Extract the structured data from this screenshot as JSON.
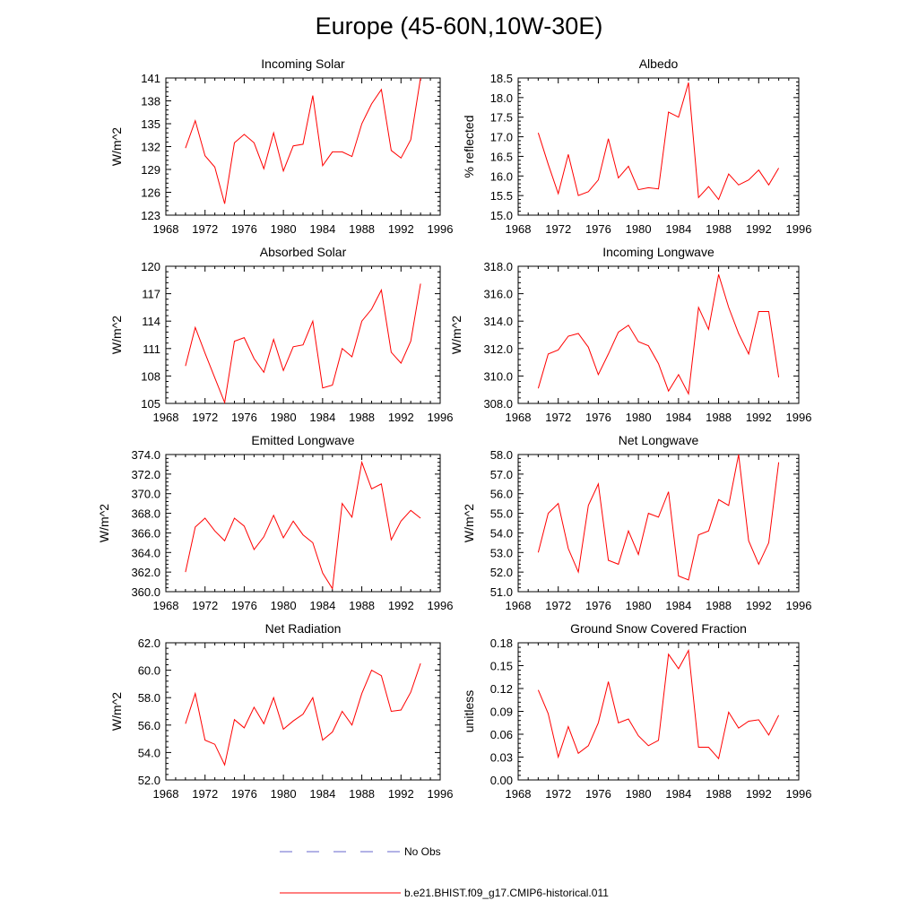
{
  "title": "Europe (45-60N,10W-30E)",
  "legend": [
    {
      "label": "No Obs",
      "color": "#6666cc",
      "dash": true
    },
    {
      "label": "b.e21.BHIST.f09_g17.CMIP6-historical.011",
      "color": "#ff0000",
      "dash": false
    }
  ],
  "chart_data": [
    {
      "type": "line",
      "title": "Incoming Solar",
      "ylabel": "W/m^2",
      "xlim": [
        1968,
        1996
      ],
      "ylim": [
        123,
        141
      ],
      "xticks": [
        1968,
        1972,
        1976,
        1980,
        1984,
        1988,
        1992,
        1996
      ],
      "yticks": [
        "123",
        "126",
        "129",
        "132",
        "135",
        "138",
        "141"
      ],
      "x": [
        1970,
        1971,
        1972,
        1973,
        1974,
        1975,
        1976,
        1977,
        1978,
        1979,
        1980,
        1981,
        1982,
        1983,
        1984,
        1985,
        1986,
        1987,
        1988,
        1989,
        1990,
        1991,
        1992,
        1993,
        1994
      ],
      "series": [
        {
          "name": "b.e21.BHIST.f09_g17.CMIP6-historical.011",
          "values": [
            131.8,
            135.4,
            130.8,
            129.3,
            124.5,
            132.5,
            133.6,
            132.5,
            129.1,
            133.8,
            128.8,
            132.1,
            132.3,
            138.7,
            129.5,
            131.3,
            131.3,
            130.7,
            135,
            137.6,
            139.5,
            131.5,
            130.5,
            132.9,
            141
          ]
        }
      ]
    },
    {
      "type": "line",
      "title": "Albedo",
      "ylabel": "% reflected",
      "xlim": [
        1968,
        1996
      ],
      "ylim": [
        15.0,
        18.5
      ],
      "xticks": [
        1968,
        1972,
        1976,
        1980,
        1984,
        1988,
        1992,
        1996
      ],
      "yticks": [
        "15.0",
        "15.5",
        "16.0",
        "16.5",
        "17.0",
        "17.5",
        "18.0",
        "18.5"
      ],
      "x": [
        1970,
        1971,
        1972,
        1973,
        1974,
        1975,
        1976,
        1977,
        1978,
        1979,
        1980,
        1981,
        1982,
        1983,
        1984,
        1985,
        1986,
        1987,
        1988,
        1989,
        1990,
        1991,
        1992,
        1993,
        1994
      ],
      "series": [
        {
          "name": "b.e21.BHIST.f09_g17.CMIP6-historical.011",
          "values": [
            17.1,
            16.3,
            15.55,
            16.55,
            15.5,
            15.6,
            15.9,
            16.95,
            15.95,
            16.25,
            15.65,
            15.7,
            15.67,
            17.63,
            17.5,
            18.38,
            15.45,
            15.73,
            15.4,
            16.05,
            15.77,
            15.9,
            16.15,
            15.77,
            16.2
          ]
        }
      ]
    },
    {
      "type": "line",
      "title": "Absorbed Solar",
      "ylabel": "W/m^2",
      "xlim": [
        1968,
        1996
      ],
      "ylim": [
        105,
        120
      ],
      "xticks": [
        1968,
        1972,
        1976,
        1980,
        1984,
        1988,
        1992,
        1996
      ],
      "yticks": [
        "105",
        "108",
        "111",
        "114",
        "117",
        "120"
      ],
      "x": [
        1970,
        1971,
        1972,
        1973,
        1974,
        1975,
        1976,
        1977,
        1978,
        1979,
        1980,
        1981,
        1982,
        1983,
        1984,
        1985,
        1986,
        1987,
        1988,
        1989,
        1990,
        1991,
        1992,
        1993,
        1994
      ],
      "series": [
        {
          "name": "b.e21.BHIST.f09_g17.CMIP6-historical.011",
          "values": [
            109.1,
            113.3,
            110.5,
            107.8,
            105.1,
            111.8,
            112.2,
            109.9,
            108.4,
            112,
            108.6,
            111.2,
            111.4,
            114,
            106.7,
            107,
            111,
            110.1,
            114,
            115.3,
            117.4,
            110.6,
            109.4,
            111.8,
            118.1
          ]
        }
      ]
    },
    {
      "type": "line",
      "title": "Incoming Longwave",
      "ylabel": "W/m^2",
      "xlim": [
        1968,
        1996
      ],
      "ylim": [
        308.0,
        318.0
      ],
      "xticks": [
        1968,
        1972,
        1976,
        1980,
        1984,
        1988,
        1992,
        1996
      ],
      "yticks": [
        "308.0",
        "310.0",
        "312.0",
        "314.0",
        "316.0",
        "318.0"
      ],
      "x": [
        1970,
        1971,
        1972,
        1973,
        1974,
        1975,
        1976,
        1977,
        1978,
        1979,
        1980,
        1981,
        1982,
        1983,
        1984,
        1985,
        1986,
        1987,
        1988,
        1989,
        1990,
        1991,
        1992,
        1993,
        1994
      ],
      "series": [
        {
          "name": "b.e21.BHIST.f09_g17.CMIP6-historical.011",
          "values": [
            309.1,
            311.6,
            311.9,
            312.9,
            313.1,
            312.1,
            310.1,
            311.6,
            313.2,
            313.7,
            312.5,
            312.2,
            310.9,
            308.9,
            310.1,
            308.7,
            315,
            313.4,
            317.4,
            315,
            313.1,
            311.6,
            314.7,
            314.7,
            309.9
          ]
        }
      ]
    },
    {
      "type": "line",
      "title": "Emitted Longwave",
      "ylabel": "W/m^2",
      "xlim": [
        1968,
        1996
      ],
      "ylim": [
        360.0,
        374.0
      ],
      "xticks": [
        1968,
        1972,
        1976,
        1980,
        1984,
        1988,
        1992,
        1996
      ],
      "yticks": [
        "360.0",
        "362.0",
        "364.0",
        "366.0",
        "368.0",
        "370.0",
        "372.0",
        "374.0"
      ],
      "x": [
        1970,
        1971,
        1972,
        1973,
        1974,
        1975,
        1976,
        1977,
        1978,
        1979,
        1980,
        1981,
        1982,
        1983,
        1984,
        1985,
        1986,
        1987,
        1988,
        1989,
        1990,
        1991,
        1992,
        1993,
        1994
      ],
      "series": [
        {
          "name": "b.e21.BHIST.f09_g17.CMIP6-historical.011",
          "values": [
            362,
            366.6,
            367.5,
            366.2,
            365.2,
            367.5,
            366.7,
            364.3,
            365.6,
            367.8,
            365.5,
            367.2,
            365.8,
            365,
            361.9,
            360.3,
            369,
            367.6,
            373.2,
            370.5,
            371,
            365.3,
            367.2,
            368.3,
            367.5
          ]
        }
      ]
    },
    {
      "type": "line",
      "title": "Net Longwave",
      "ylabel": "W/m^2",
      "xlim": [
        1968,
        1996
      ],
      "ylim": [
        51.0,
        58.0
      ],
      "xticks": [
        1968,
        1972,
        1976,
        1980,
        1984,
        1988,
        1992,
        1996
      ],
      "yticks": [
        "51.0",
        "52.0",
        "53.0",
        "54.0",
        "55.0",
        "56.0",
        "57.0",
        "58.0"
      ],
      "x": [
        1970,
        1971,
        1972,
        1973,
        1974,
        1975,
        1976,
        1977,
        1978,
        1979,
        1980,
        1981,
        1982,
        1983,
        1984,
        1985,
        1986,
        1987,
        1988,
        1989,
        1990,
        1991,
        1992,
        1993,
        1994
      ],
      "series": [
        {
          "name": "b.e21.BHIST.f09_g17.CMIP6-historical.011",
          "values": [
            53,
            55,
            55.5,
            53.2,
            52,
            55.4,
            56.5,
            52.6,
            52.4,
            54.1,
            52.9,
            55,
            54.8,
            56.1,
            51.8,
            51.6,
            53.9,
            54.1,
            55.7,
            55.4,
            58,
            53.6,
            52.4,
            53.5,
            57.6
          ]
        }
      ]
    },
    {
      "type": "line",
      "title": "Net Radiation",
      "ylabel": "W/m^2",
      "xlim": [
        1968,
        1996
      ],
      "ylim": [
        52.0,
        62.0
      ],
      "xticks": [
        1968,
        1972,
        1976,
        1980,
        1984,
        1988,
        1992,
        1996
      ],
      "yticks": [
        "52.0",
        "54.0",
        "56.0",
        "58.0",
        "60.0",
        "62.0"
      ],
      "x": [
        1970,
        1971,
        1972,
        1973,
        1974,
        1975,
        1976,
        1977,
        1978,
        1979,
        1980,
        1981,
        1982,
        1983,
        1984,
        1985,
        1986,
        1987,
        1988,
        1989,
        1990,
        1991,
        1992,
        1993,
        1994
      ],
      "series": [
        {
          "name": "b.e21.BHIST.f09_g17.CMIP6-historical.011",
          "values": [
            56.1,
            58.3,
            54.9,
            54.6,
            53.1,
            56.4,
            55.8,
            57.3,
            56.1,
            58,
            55.7,
            56.3,
            56.8,
            58,
            54.9,
            55.5,
            57,
            56,
            58.3,
            60,
            59.6,
            57,
            57.1,
            58.4,
            60.5
          ]
        }
      ]
    },
    {
      "type": "line",
      "title": "Ground Snow Covered Fraction",
      "ylabel": "unitless",
      "xlim": [
        1968,
        1996
      ],
      "ylim": [
        0.0,
        0.18
      ],
      "xticks": [
        1968,
        1972,
        1976,
        1980,
        1984,
        1988,
        1992,
        1996
      ],
      "yticks": [
        "0.00",
        "0.03",
        "0.06",
        "0.09",
        "0.12",
        "0.15",
        "0.18"
      ],
      "x": [
        1970,
        1971,
        1972,
        1973,
        1974,
        1975,
        1976,
        1977,
        1978,
        1979,
        1980,
        1981,
        1982,
        1983,
        1984,
        1985,
        1986,
        1987,
        1988,
        1989,
        1990,
        1991,
        1992,
        1993,
        1994
      ],
      "series": [
        {
          "name": "b.e21.BHIST.f09_g17.CMIP6-historical.011",
          "values": [
            0.118,
            0.087,
            0.03,
            0.07,
            0.035,
            0.045,
            0.075,
            0.129,
            0.075,
            0.08,
            0.058,
            0.045,
            0.052,
            0.165,
            0.146,
            0.17,
            0.043,
            0.043,
            0.028,
            0.089,
            0.068,
            0.077,
            0.079,
            0.059,
            0.085
          ]
        }
      ]
    }
  ]
}
